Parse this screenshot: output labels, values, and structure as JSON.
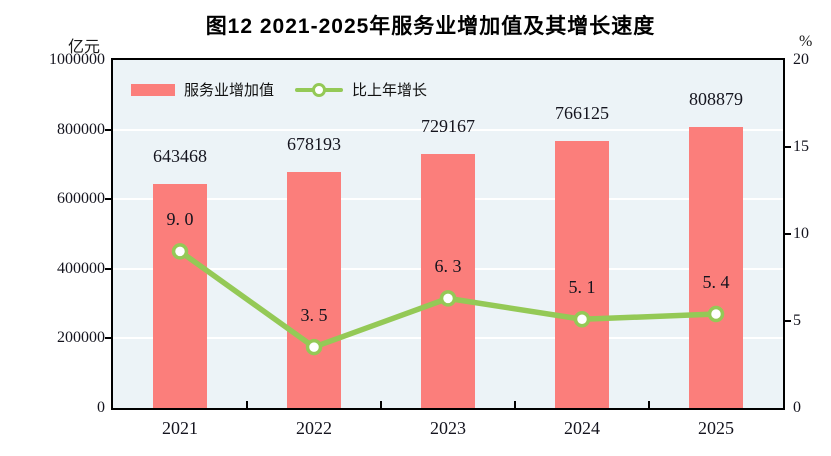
{
  "chart_data": {
    "type": "bar+line",
    "title": "图12  2021-2025年服务业增加值及其增长速度",
    "categories": [
      "2021",
      "2022",
      "2023",
      "2024",
      "2025"
    ],
    "series": [
      {
        "name": "服务业增加值",
        "type": "bar",
        "axis": "left",
        "values": [
          643468,
          678193,
          729167,
          766125,
          808879
        ],
        "labels": [
          "643468",
          "678193",
          "729167",
          "766125",
          "808879"
        ],
        "color": "#FB7E7B"
      },
      {
        "name": "比上年增长",
        "type": "line",
        "axis": "right",
        "values": [
          9.0,
          3.5,
          6.3,
          5.1,
          5.4
        ],
        "labels": [
          "9. 0",
          "3. 5",
          "6. 3",
          "5. 1",
          "5. 4"
        ],
        "color": "#94C956",
        "marker": "circle-white-fill-green-ring"
      }
    ],
    "left_axis": {
      "unit": "亿元",
      "min": 0,
      "max": 1000000,
      "tick_step": 200000,
      "tick_labels": [
        "0",
        "200000",
        "400000",
        "600000",
        "800000",
        "1000000"
      ]
    },
    "right_axis": {
      "unit": "%",
      "min": 0,
      "max": 20,
      "tick_step": 5,
      "tick_labels": [
        "0",
        "5",
        "10",
        "15",
        "20"
      ]
    },
    "legend": {
      "position": "top-left-inside",
      "items": [
        {
          "label": "服务业增加值",
          "swatch": "bar",
          "color": "#FB7E7B"
        },
        {
          "label": "比上年增长",
          "swatch": "line-marker",
          "color": "#94C956"
        }
      ]
    },
    "style": {
      "plot_bg": "#ECF3F7",
      "grid_color": "#FFFFFF",
      "border_color": "#000000",
      "text_color": "#14141E"
    }
  }
}
